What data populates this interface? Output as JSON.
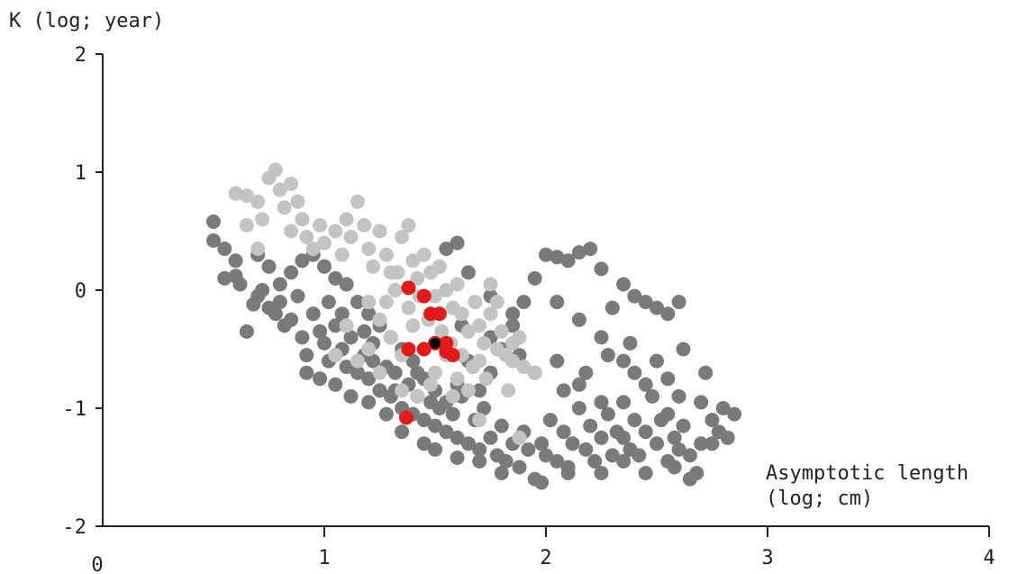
{
  "chart_data": {
    "type": "scatter",
    "title": "",
    "ylabel": "K (log; year)",
    "xlabel_lines": [
      "Asymptotic length",
      "(log; cm)"
    ],
    "xlim": [
      0,
      4
    ],
    "ylim": [
      -2,
      2
    ],
    "x_ticks": [
      {
        "value": 1,
        "label": "1"
      },
      {
        "value": 2,
        "label": "2"
      },
      {
        "value": 3,
        "label": "3"
      },
      {
        "value": 4,
        "label": "4"
      }
    ],
    "x_origin_label": "0",
    "y_ticks": [
      {
        "value": -2,
        "label": "-2"
      },
      {
        "value": -1,
        "label": "-1"
      },
      {
        "value": 0,
        "label": "0"
      },
      {
        "value": 1,
        "label": "1"
      },
      {
        "value": 2,
        "label": "2"
      }
    ],
    "grid": false,
    "series": [
      {
        "color": "#7a7a7a",
        "points": [
          [
            0.5,
            0.58
          ],
          [
            0.5,
            0.42
          ],
          [
            0.55,
            0.1
          ],
          [
            0.6,
            0.12
          ],
          [
            0.62,
            0.05
          ],
          [
            0.65,
            -0.35
          ],
          [
            0.68,
            -0.12
          ],
          [
            0.7,
            -0.05
          ],
          [
            0.72,
            0.0
          ],
          [
            0.75,
            -0.15
          ],
          [
            0.78,
            -0.2
          ],
          [
            0.8,
            -0.1
          ],
          [
            0.82,
            -0.3
          ],
          [
            0.85,
            -0.25
          ],
          [
            0.88,
            -0.05
          ],
          [
            0.9,
            -0.4
          ],
          [
            0.92,
            -0.55
          ],
          [
            0.95,
            -0.2
          ],
          [
            0.98,
            -0.35
          ],
          [
            1.0,
            -0.45
          ],
          [
            1.02,
            -0.6
          ],
          [
            1.05,
            -0.3
          ],
          [
            1.08,
            -0.5
          ],
          [
            1.1,
            -0.65
          ],
          [
            1.12,
            -0.4
          ],
          [
            1.15,
            -0.7
          ],
          [
            1.18,
            -0.55
          ],
          [
            1.2,
            -0.75
          ],
          [
            1.22,
            -0.45
          ],
          [
            1.25,
            -0.85
          ],
          [
            1.28,
            -0.65
          ],
          [
            1.3,
            -0.9
          ],
          [
            1.32,
            -0.7
          ],
          [
            1.35,
            -1.0
          ],
          [
            1.38,
            -0.8
          ],
          [
            1.4,
            -1.05
          ],
          [
            1.42,
            -0.9
          ],
          [
            1.45,
            -1.1
          ],
          [
            1.48,
            -0.95
          ],
          [
            1.5,
            -1.15
          ],
          [
            1.52,
            -1.0
          ],
          [
            1.55,
            -1.2
          ],
          [
            1.58,
            -1.05
          ],
          [
            1.6,
            -1.25
          ],
          [
            1.62,
            -0.9
          ],
          [
            1.65,
            -1.3
          ],
          [
            1.68,
            -1.1
          ],
          [
            1.7,
            -1.35
          ],
          [
            1.72,
            -1.0
          ],
          [
            1.75,
            -1.25
          ],
          [
            1.78,
            -1.4
          ],
          [
            1.8,
            -1.15
          ],
          [
            1.82,
            -1.45
          ],
          [
            1.85,
            -1.3
          ],
          [
            1.88,
            -1.5
          ],
          [
            1.9,
            -1.2
          ],
          [
            1.92,
            -1.35
          ],
          [
            1.95,
            -1.6
          ],
          [
            1.98,
            -1.3
          ],
          [
            2.0,
            -1.4
          ],
          [
            2.02,
            -1.1
          ],
          [
            2.05,
            -1.45
          ],
          [
            2.08,
            -1.2
          ],
          [
            2.1,
            -1.5
          ],
          [
            2.12,
            -1.3
          ],
          [
            2.15,
            -1.0
          ],
          [
            2.18,
            -1.35
          ],
          [
            2.2,
            -1.15
          ],
          [
            2.22,
            -1.45
          ],
          [
            2.25,
            -1.25
          ],
          [
            2.28,
            -1.05
          ],
          [
            2.3,
            -1.4
          ],
          [
            2.32,
            -1.2
          ],
          [
            2.35,
            -0.95
          ],
          [
            2.38,
            -1.35
          ],
          [
            2.4,
            -1.1
          ],
          [
            2.42,
            -1.4
          ],
          [
            2.45,
            -1.2
          ],
          [
            2.48,
            -0.9
          ],
          [
            2.5,
            -1.3
          ],
          [
            2.52,
            -1.1
          ],
          [
            2.55,
            -1.45
          ],
          [
            2.58,
            -1.25
          ],
          [
            2.6,
            -1.35
          ],
          [
            2.62,
            -1.15
          ],
          [
            2.65,
            -1.4
          ],
          [
            2.68,
            -1.55
          ],
          [
            2.7,
            -1.3
          ],
          [
            2.75,
            -1.1
          ],
          [
            2.78,
            -1.2
          ],
          [
            2.8,
            -1.0
          ],
          [
            2.85,
            -1.05
          ],
          [
            2.82,
            -1.25
          ],
          [
            2.65,
            -1.6
          ],
          [
            2.55,
            -1.05
          ],
          [
            2.45,
            -0.8
          ],
          [
            2.35,
            -0.6
          ],
          [
            2.25,
            -0.4
          ],
          [
            2.15,
            -0.25
          ],
          [
            2.05,
            -0.1
          ],
          [
            1.95,
            0.1
          ],
          [
            2.0,
            0.3
          ],
          [
            2.05,
            0.28
          ],
          [
            2.1,
            0.25
          ],
          [
            2.15,
            0.32
          ],
          [
            2.2,
            0.35
          ],
          [
            2.25,
            0.18
          ],
          [
            2.3,
            -0.15
          ],
          [
            2.35,
            0.05
          ],
          [
            2.4,
            -0.05
          ],
          [
            2.45,
            -0.1
          ],
          [
            2.5,
            -0.15
          ],
          [
            2.55,
            -0.2
          ],
          [
            2.6,
            -0.1
          ],
          [
            1.9,
            -0.1
          ],
          [
            1.85,
            -0.3
          ],
          [
            1.8,
            -0.5
          ],
          [
            1.75,
            -0.7
          ],
          [
            1.7,
            -0.85
          ],
          [
            1.65,
            -0.6
          ],
          [
            1.6,
            -0.8
          ],
          [
            1.55,
            -0.95
          ],
          [
            1.5,
            -0.85
          ],
          [
            1.45,
            -0.75
          ],
          [
            1.4,
            -0.6
          ],
          [
            1.35,
            -0.5
          ],
          [
            1.3,
            -0.4
          ],
          [
            1.25,
            -0.3
          ],
          [
            1.2,
            -0.2
          ],
          [
            1.15,
            -0.1
          ],
          [
            1.1,
            0.05
          ],
          [
            1.05,
            0.1
          ],
          [
            1.0,
            0.2
          ],
          [
            0.95,
            0.3
          ],
          [
            0.9,
            0.25
          ],
          [
            0.85,
            0.15
          ],
          [
            0.8,
            0.05
          ],
          [
            1.6,
            0.4
          ],
          [
            1.55,
            0.35
          ],
          [
            1.65,
            0.15
          ],
          [
            1.75,
            -0.05
          ],
          [
            1.85,
            -0.2
          ],
          [
            2.05,
            -0.6
          ],
          [
            2.15,
            -0.8
          ],
          [
            2.25,
            -0.95
          ],
          [
            2.35,
            -1.25
          ],
          [
            2.4,
            -0.7
          ],
          [
            2.5,
            -0.6
          ],
          [
            2.55,
            -0.75
          ],
          [
            2.6,
            -0.9
          ],
          [
            2.62,
            -0.5
          ],
          [
            2.7,
            -0.95
          ],
          [
            2.72,
            -0.7
          ],
          [
            2.75,
            -1.3
          ],
          [
            2.58,
            -1.5
          ],
          [
            2.45,
            -1.55
          ],
          [
            2.35,
            -1.45
          ],
          [
            2.25,
            -1.55
          ],
          [
            2.1,
            -1.55
          ],
          [
            1.98,
            -1.63
          ],
          [
            1.8,
            -1.55
          ],
          [
            1.7,
            -1.45
          ],
          [
            1.6,
            -1.42
          ],
          [
            1.5,
            -1.35
          ],
          [
            1.45,
            -1.3
          ],
          [
            1.35,
            -1.2
          ],
          [
            1.28,
            -1.05
          ],
          [
            1.2,
            -0.95
          ],
          [
            1.12,
            -0.9
          ],
          [
            1.05,
            -0.8
          ],
          [
            0.98,
            -0.75
          ],
          [
            0.92,
            -0.7
          ],
          [
            1.62,
            -0.3
          ],
          [
            1.75,
            -0.4
          ],
          [
            1.88,
            -0.55
          ],
          [
            1.95,
            -0.7
          ],
          [
            2.08,
            -0.85
          ],
          [
            2.18,
            -0.7
          ],
          [
            2.28,
            -0.55
          ],
          [
            2.38,
            -0.45
          ],
          [
            0.55,
            0.35
          ],
          [
            0.6,
            0.25
          ],
          [
            0.7,
            0.3
          ],
          [
            0.75,
            0.2
          ],
          [
            1.02,
            -0.1
          ],
          [
            1.08,
            -0.2
          ],
          [
            1.18,
            -0.35
          ],
          [
            1.22,
            -0.6
          ],
          [
            1.32,
            -0.85
          ],
          [
            1.42,
            -0.7
          ]
        ]
      },
      {
        "color": "#c3c3c3",
        "points": [
          [
            0.6,
            0.82
          ],
          [
            0.65,
            0.8
          ],
          [
            0.7,
            0.75
          ],
          [
            0.75,
            0.95
          ],
          [
            0.78,
            1.02
          ],
          [
            0.8,
            0.85
          ],
          [
            0.82,
            0.7
          ],
          [
            0.85,
            0.9
          ],
          [
            0.88,
            0.75
          ],
          [
            0.9,
            0.6
          ],
          [
            0.85,
            0.5
          ],
          [
            0.92,
            0.45
          ],
          [
            0.95,
            0.35
          ],
          [
            0.98,
            0.55
          ],
          [
            1.0,
            0.4
          ],
          [
            1.05,
            0.5
          ],
          [
            1.08,
            0.3
          ],
          [
            1.1,
            0.6
          ],
          [
            1.12,
            0.45
          ],
          [
            1.15,
            0.75
          ],
          [
            1.18,
            0.55
          ],
          [
            1.2,
            0.35
          ],
          [
            1.22,
            0.2
          ],
          [
            1.25,
            0.5
          ],
          [
            1.28,
            0.3
          ],
          [
            1.3,
            0.15
          ],
          [
            1.32,
            0.0
          ],
          [
            1.35,
            0.45
          ],
          [
            1.38,
            0.55
          ],
          [
            1.4,
            0.25
          ],
          [
            1.42,
            0.1
          ],
          [
            1.45,
            0.3
          ],
          [
            1.48,
            0.15
          ],
          [
            1.5,
            -0.05
          ],
          [
            1.52,
            0.2
          ],
          [
            1.55,
            0.0
          ],
          [
            1.58,
            -0.15
          ],
          [
            1.6,
            0.05
          ],
          [
            1.62,
            -0.2
          ],
          [
            1.65,
            -0.35
          ],
          [
            1.68,
            -0.1
          ],
          [
            1.7,
            -0.3
          ],
          [
            1.72,
            -0.45
          ],
          [
            1.75,
            -0.2
          ],
          [
            1.78,
            -0.5
          ],
          [
            1.8,
            -0.35
          ],
          [
            1.82,
            -0.55
          ],
          [
            1.85,
            -0.6
          ],
          [
            1.88,
            -0.4
          ],
          [
            1.9,
            -0.65
          ],
          [
            1.95,
            -0.7
          ],
          [
            1.2,
            -0.1
          ],
          [
            1.25,
            -0.25
          ],
          [
            1.3,
            -0.4
          ],
          [
            1.35,
            -0.55
          ],
          [
            1.4,
            -0.3
          ],
          [
            1.45,
            -0.5
          ],
          [
            1.5,
            -0.7
          ],
          [
            1.55,
            -0.55
          ],
          [
            1.6,
            -0.75
          ],
          [
            1.65,
            -0.85
          ],
          [
            1.7,
            -0.6
          ],
          [
            1.1,
            -0.3
          ],
          [
            1.05,
            -0.55
          ],
          [
            1.15,
            -0.6
          ],
          [
            1.2,
            -0.5
          ],
          [
            1.25,
            -0.7
          ],
          [
            1.35,
            -0.85
          ],
          [
            1.42,
            -0.9
          ],
          [
            1.48,
            -0.8
          ],
          [
            1.58,
            -0.9
          ],
          [
            1.7,
            -1.1
          ],
          [
            1.88,
            -1.25
          ],
          [
            1.85,
            -0.45
          ],
          [
            1.75,
            0.05
          ],
          [
            1.78,
            -0.1
          ],
          [
            0.7,
            0.35
          ],
          [
            0.65,
            0.55
          ],
          [
            0.72,
            0.6
          ],
          [
            1.28,
            -0.1
          ],
          [
            1.33,
            0.15
          ],
          [
            1.38,
            -0.15
          ],
          [
            1.43,
            -0.05
          ],
          [
            1.47,
            -0.25
          ],
          [
            1.53,
            -0.35
          ],
          [
            1.57,
            -0.45
          ],
          [
            1.62,
            -0.55
          ],
          [
            1.67,
            -0.65
          ],
          [
            1.73,
            -0.75
          ],
          [
            1.83,
            -0.85
          ]
        ]
      },
      {
        "color": "#e11a1a",
        "points": [
          [
            1.38,
            0.02
          ],
          [
            1.45,
            -0.05
          ],
          [
            1.48,
            -0.2
          ],
          [
            1.52,
            -0.2
          ],
          [
            1.5,
            -0.45
          ],
          [
            1.55,
            -0.45
          ],
          [
            1.58,
            -0.55
          ],
          [
            1.55,
            -0.52
          ],
          [
            1.45,
            -0.5
          ],
          [
            1.38,
            -0.5
          ],
          [
            1.37,
            -1.08
          ]
        ]
      },
      {
        "color": "#000000",
        "points": [
          [
            1.5,
            -0.45
          ]
        ]
      }
    ]
  }
}
